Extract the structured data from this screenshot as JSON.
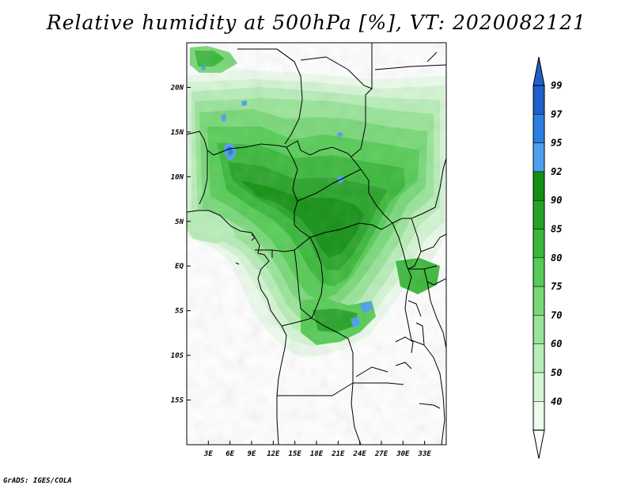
{
  "title": "Relative humidity at 500hPa [%], VT: 2020082121",
  "footer": "GrADS: IGES/COLA",
  "map": {
    "lon_range": [
      0,
      36
    ],
    "lat_range": [
      -20,
      25
    ],
    "lat_ticks": [
      {
        "value": 20,
        "label": "20N"
      },
      {
        "value": 15,
        "label": "15N"
      },
      {
        "value": 10,
        "label": "10N"
      },
      {
        "value": 5,
        "label": "5N"
      },
      {
        "value": 0,
        "label": "EQ"
      },
      {
        "value": -5,
        "label": "5S"
      },
      {
        "value": -10,
        "label": "10S"
      },
      {
        "value": -15,
        "label": "15S"
      }
    ],
    "lon_ticks": [
      {
        "value": 3,
        "label": "3E"
      },
      {
        "value": 6,
        "label": "6E"
      },
      {
        "value": 9,
        "label": "9E"
      },
      {
        "value": 12,
        "label": "12E"
      },
      {
        "value": 15,
        "label": "15E"
      },
      {
        "value": 18,
        "label": "18E"
      },
      {
        "value": 21,
        "label": "21E"
      },
      {
        "value": 24,
        "label": "24E"
      },
      {
        "value": 27,
        "label": "27E"
      },
      {
        "value": 30,
        "label": "30E"
      },
      {
        "value": 33,
        "label": "33E"
      }
    ]
  },
  "colorbar": {
    "levels": [
      {
        "label": "99",
        "color": "#1f5fc9"
      },
      {
        "label": "97",
        "color": "#2a7fe0"
      },
      {
        "label": "95",
        "color": "#4f9ff0"
      },
      {
        "label": "92",
        "color": "#129012"
      },
      {
        "label": "90",
        "color": "#27a327"
      },
      {
        "label": "85",
        "color": "#3ab83a"
      },
      {
        "label": "80",
        "color": "#55cc55"
      },
      {
        "label": "75",
        "color": "#78d878"
      },
      {
        "label": "70",
        "color": "#98e498"
      },
      {
        "label": "60",
        "color": "#b8edb8"
      },
      {
        "label": "50",
        "color": "#d4f5d4"
      },
      {
        "label": "40",
        "color": "#ecfbec"
      }
    ],
    "top_color": "#1f5fc9",
    "bottom_color": "#ffffff"
  }
}
